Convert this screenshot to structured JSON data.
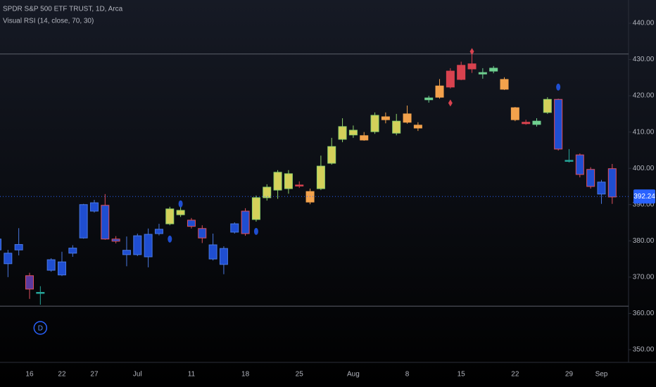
{
  "chart_data": {
    "type": "candlestick",
    "title": "SPDR S&P 500 ETF TRUST, 1D, Arca",
    "subtitle": "Visual RSI (14, close, 70, 30)",
    "categories": [
      null,
      null,
      null,
      "16",
      null,
      null,
      "22",
      null,
      null,
      "27",
      null,
      null,
      null,
      "Jul",
      null,
      null,
      null,
      null,
      "11",
      null,
      null,
      null,
      null,
      "18",
      null,
      null,
      null,
      null,
      "25",
      null,
      null,
      null,
      null,
      "Aug",
      null,
      null,
      null,
      null,
      "8",
      null,
      null,
      null,
      null,
      "15",
      null,
      null,
      null,
      null,
      "22",
      null,
      null,
      null,
      null,
      "29",
      null,
      null,
      "Sep",
      null
    ],
    "open": [
      380.5,
      376.6,
      377.5,
      370.4,
      365.8,
      371.9,
      374.2,
      376.6,
      380.8,
      388.2,
      389.8,
      380.5,
      376.2,
      376.2,
      375.6,
      382,
      384.7,
      387.2,
      385.7,
      383.4,
      378.9,
      373.5,
      382.4,
      382,
      385.9,
      391.9,
      394,
      394.4,
      395.4,
      393.6,
      394.4,
      401.4,
      408,
      409.2,
      409,
      410.1,
      414.2,
      409.7,
      412.7,
      411.9,
      418.9,
      419.6,
      422.4,
      424.5,
      427.4,
      426.4,
      426.8,
      424.5,
      416.7,
      412.7,
      412.1,
      415.4,
      419,
      402.2,
      403.7,
      399.7,
      396.2,
      392.1
    ],
    "high": [
      381,
      377.5,
      383.5,
      371.2,
      367.5,
      375.2,
      377,
      378.8,
      390.2,
      391.3,
      392.9,
      381.3,
      381.2,
      382,
      383.4,
      384.7,
      389.4,
      389.4,
      386.3,
      384.3,
      382,
      378.5,
      385.1,
      389,
      392.5,
      395.6,
      399.5,
      399.5,
      396.4,
      394.4,
      403.5,
      408.4,
      413.8,
      411.8,
      410,
      415.4,
      415.4,
      415,
      417.3,
      412.7,
      420,
      424.6,
      427.6,
      429.4,
      431.5,
      427.6,
      428.2,
      425.1,
      416.9,
      413.4,
      413.8,
      419.6,
      419.2,
      405.3,
      404.1,
      400.3,
      396.8,
      401.2
    ],
    "low": [
      377,
      370,
      376,
      364,
      362.4,
      371.5,
      370.3,
      375.6,
      380.6,
      387.8,
      380.3,
      379.3,
      373,
      375.8,
      372.7,
      381.5,
      384.3,
      386.6,
      383.4,
      379.4,
      374.6,
      370.8,
      382,
      381.4,
      385.3,
      391.1,
      391.6,
      393,
      394.6,
      390.1,
      394,
      401,
      407.2,
      408.4,
      407.6,
      409.5,
      412.4,
      409.1,
      412.3,
      410.3,
      418.1,
      419.2,
      422,
      424.3,
      426.3,
      424.7,
      426.2,
      421.6,
      413,
      412,
      411.5,
      415,
      404.9,
      401.6,
      397.5,
      394.4,
      390.2,
      390.2
    ],
    "close": [
      377.5,
      373.7,
      379,
      366.7,
      365.6,
      374.8,
      370.6,
      378,
      390,
      390.5,
      380.5,
      379.9,
      377.4,
      381.4,
      381.8,
      383.2,
      388.8,
      388.4,
      384,
      380.8,
      375,
      377.9,
      384.7,
      388.2,
      391.9,
      394.8,
      398.9,
      398.5,
      395.4,
      390.7,
      400.6,
      406,
      411.5,
      410.5,
      407.8,
      414.6,
      413.4,
      413,
      415,
      411.1,
      419.4,
      422.7,
      426.8,
      428.4,
      428.8,
      426,
      427.6,
      421.8,
      413.4,
      412.3,
      413,
      419,
      405.3,
      402,
      398.3,
      395,
      392.9,
      399.9
    ],
    "colors": [
      "#1f4ed1",
      "#1f4ed1",
      "#1f4ed1",
      "#5b3a9e",
      "#26a69a",
      "#1f4ed1",
      "#1f4ed1",
      "#1f4ed1",
      "#1f4ed1",
      "#1f4ed1",
      "#1f4ed1",
      "#1f4ed1",
      "#1f4ed1",
      "#1f4ed1",
      "#1f4ed1",
      "#1f4ed1",
      "#d4d05a",
      "#d4d05a",
      "#1f4ed1",
      "#1f4ed1",
      "#1f4ed1",
      "#1f4ed1",
      "#1f4ed1",
      "#1f4ed1",
      "#d4d05a",
      "#d4d05a",
      "#d4d05a",
      "#d4d05a",
      "#d8424f",
      "#f3a24c",
      "#d4d05a",
      "#d4d05a",
      "#d4d05a",
      "#d4d05a",
      "#f3a24c",
      "#d4d05a",
      "#f3a24c",
      "#d4d05a",
      "#f3a24c",
      "#f3a24c",
      "#6fcf8f",
      "#f3a24c",
      "#d8424f",
      "#d8424f",
      "#d8424f",
      "#6fcf8f",
      "#6fcf8f",
      "#f3a24c",
      "#f3a24c",
      "#d8424f",
      "#6fcf8f",
      "#d4d05a",
      "#1f4ed1",
      "#26a69a",
      "#1f4ed1",
      "#1f4ed1",
      "#1f4ed1",
      "#1f4ed1"
    ],
    "border_colors": [
      "#4a78e0",
      "#4a78e0",
      "#4a78e0",
      "#e0505e",
      "#26a69a",
      "#4a78e0",
      "#4a78e0",
      "#4a78e0",
      "#4a78e0",
      "#4a78e0",
      "#e0505e",
      "#e0505e",
      "#4a78e0",
      "#4a78e0",
      "#4a78e0",
      "#4a78e0",
      "#8fd16a",
      "#8fd16a",
      "#e0505e",
      "#e0505e",
      "#4a78e0",
      "#4a78e0",
      "#4a78e0",
      "#e0505e",
      "#8fd16a",
      "#8fd16a",
      "#8fd16a",
      "#8fd16a",
      "#d8424f",
      "#f3a24c",
      "#8fd16a",
      "#8fd16a",
      "#8fd16a",
      "#8fd16a",
      "#f3a24c",
      "#8fd16a",
      "#f3a24c",
      "#8fd16a",
      "#f3a24c",
      "#f3a24c",
      "#6fcf8f",
      "#f3a24c",
      "#d8424f",
      "#d8424f",
      "#d8424f",
      "#6fcf8f",
      "#6fcf8f",
      "#f3a24c",
      "#f3a24c",
      "#d8424f",
      "#6fcf8f",
      "#8fd16a",
      "#e0505e",
      "#26a69a",
      "#e0505e",
      "#e0505e",
      "#4a78e0",
      "#e0505e"
    ],
    "markers": {
      "indices": [
        16,
        17,
        24,
        42,
        44,
        52
      ],
      "values": [
        380.5,
        390.2,
        382.6,
        418,
        432.2,
        422.4
      ],
      "shapes": [
        "ellipse",
        "ellipse",
        "ellipse",
        "diamond",
        "diamond",
        "ellipse"
      ],
      "colors": [
        "#1f4ed1",
        "#1f4ed1",
        "#1f4ed1",
        "#d8424f",
        "#d8424f",
        "#1f4ed1"
      ]
    },
    "hlines": [
      431.5,
      362
    ],
    "last_price": 392.24,
    "event_label": "D",
    "ylim": [
      346.5,
      446.4
    ],
    "yticks": [
      {
        "value": 350,
        "label": "350.00"
      },
      {
        "value": 360,
        "label": "360.00"
      },
      {
        "value": 370,
        "label": "370.00"
      },
      {
        "value": 380,
        "label": "380.00"
      },
      {
        "value": 390,
        "label": "390.00"
      },
      {
        "value": 400,
        "label": "400.00"
      },
      {
        "value": 410,
        "label": "410.00"
      },
      {
        "value": 420,
        "label": "420.00"
      },
      {
        "value": 430,
        "label": "430.00"
      },
      {
        "value": 440,
        "label": "440.00"
      }
    ]
  }
}
